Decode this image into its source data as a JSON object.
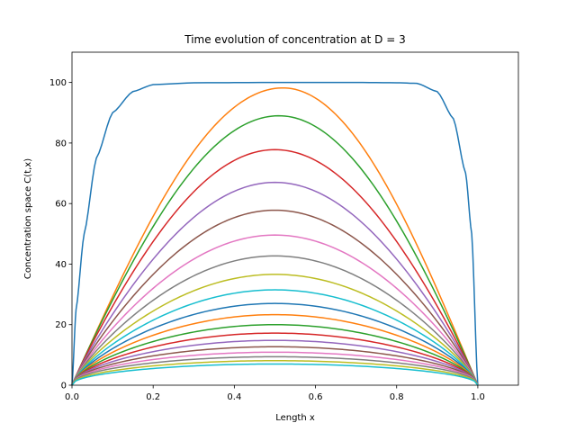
{
  "chart_data": {
    "type": "line",
    "title": "Time evolution of concentration at D = 3",
    "xlabel": "Length x",
    "ylabel": "Concentration space C(t,x)",
    "xlim": [
      0.0,
      1.1
    ],
    "ylim": [
      0,
      110
    ],
    "xticks": [
      "0.0",
      "0.2",
      "0.4",
      "0.6",
      "0.8",
      "1.0"
    ],
    "yticks": [
      "0",
      "20",
      "40",
      "60",
      "80",
      "100"
    ],
    "grid": false,
    "legend": "none",
    "x_domain": [
      0.0,
      1.0
    ],
    "first_curve": {
      "description": "near-flat plateau with steep edges",
      "plateau": 100,
      "points": [
        [
          0.0,
          0
        ],
        [
          0.01,
          25
        ],
        [
          0.03,
          50
        ],
        [
          0.06,
          75
        ],
        [
          0.1,
          90
        ],
        [
          0.15,
          97
        ],
        [
          0.2,
          99.3
        ],
        [
          0.3,
          99.9
        ],
        [
          0.5,
          100
        ],
        [
          0.7,
          100
        ],
        [
          0.8,
          99.9
        ],
        [
          0.85,
          99.7
        ],
        [
          0.9,
          97
        ],
        [
          0.94,
          88
        ],
        [
          0.97,
          70
        ],
        [
          0.985,
          50
        ],
        [
          1.0,
          0
        ]
      ]
    },
    "series_peaks": [
      98.2,
      89,
      77.8,
      67,
      57.8,
      49.6,
      42.7,
      36.6,
      31.5,
      27,
      23.3,
      20.0,
      17.2,
      14.8,
      12.7,
      10.9,
      9.4,
      8.1,
      7.0
    ],
    "series_peak_x": [
      0.52,
      0.51,
      0.5,
      0.5,
      0.5,
      0.5,
      0.5,
      0.5,
      0.5,
      0.5,
      0.5,
      0.5,
      0.5,
      0.5,
      0.5,
      0.5,
      0.5,
      0.5,
      0.5
    ],
    "colors": [
      "#1f77b4",
      "#ff7f0e",
      "#2ca02c",
      "#d62728",
      "#9467bd",
      "#8c564b",
      "#e377c2",
      "#7f7f7f",
      "#bcbd22",
      "#17becf"
    ]
  }
}
